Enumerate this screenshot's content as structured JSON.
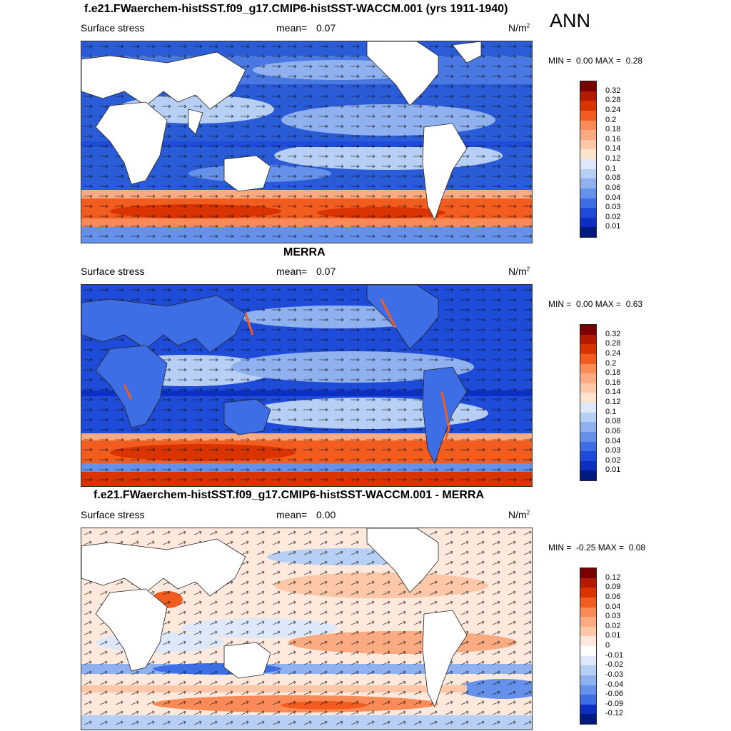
{
  "season": "ANN",
  "panels": [
    {
      "title": "f.e21.FWaerchem-histSST.f09_g17.CMIP6-histSST-WACCM.001 (yrs 1911-1940)",
      "variable": "Surface stress",
      "mean_label": "mean=",
      "mean": "0.07",
      "units": "N/m",
      "units_exp": "2",
      "min_label": "MIN =",
      "min": "0.00",
      "max_label": "MAX =",
      "max": "0.28",
      "levels": [
        "0.32",
        "0.28",
        "0.24",
        "0.2",
        "0.18",
        "0.16",
        "0.14",
        "0.12",
        "0.1",
        "0.08",
        "0.06",
        "0.04",
        "0.03",
        "0.02",
        "0.01"
      ],
      "colors": [
        "#7a0000",
        "#b31a00",
        "#d93300",
        "#f25c1f",
        "#fa8a57",
        "#fcaa82",
        "#fdc7a8",
        "#fee3cf",
        "#dde9fb",
        "#b7cff5",
        "#8fb1ef",
        "#6591ea",
        "#3d6ee6",
        "#1f4bd9",
        "#0a2fc2",
        "#001a80"
      ]
    },
    {
      "title": "MERRA",
      "variable": "Surface stress",
      "mean_label": "mean=",
      "mean": "0.07",
      "units": "N/m",
      "units_exp": "2",
      "min_label": "MIN =",
      "min": "0.00",
      "max_label": "MAX =",
      "max": "0.63",
      "levels": [
        "0.32",
        "0.28",
        "0.24",
        "0.2",
        "0.18",
        "0.16",
        "0.14",
        "0.12",
        "0.1",
        "0.08",
        "0.06",
        "0.04",
        "0.03",
        "0.02",
        "0.01"
      ],
      "colors": [
        "#7a0000",
        "#b31a00",
        "#d93300",
        "#f25c1f",
        "#fa8a57",
        "#fcaa82",
        "#fdc7a8",
        "#fee3cf",
        "#dde9fb",
        "#b7cff5",
        "#8fb1ef",
        "#6591ea",
        "#3d6ee6",
        "#1f4bd9",
        "#0a2fc2",
        "#001a80"
      ]
    },
    {
      "title": "f.e21.FWaerchem-histSST.f09_g17.CMIP6-histSST-WACCM.001 - MERRA",
      "variable": "Surface stress",
      "mean_label": "mean=",
      "mean": "0.00",
      "units": "N/m",
      "units_exp": "2",
      "min_label": "MIN =",
      "min": "-0.25",
      "max_label": "MAX =",
      "max": "0.08",
      "levels": [
        "0.12",
        "0.09",
        "0.06",
        "0.04",
        "0.03",
        "0.02",
        "0.01",
        "0",
        "-0.01",
        "-0.02",
        "-0.03",
        "-0.04",
        "-0.06",
        "-0.09",
        "-0.12"
      ],
      "colors": [
        "#7a0000",
        "#b31a00",
        "#d93300",
        "#f25c1f",
        "#fa8a57",
        "#fcaa82",
        "#fdc7a8",
        "#fee9dc",
        "#ffffff",
        "#dde9fb",
        "#b7cff5",
        "#8fb1ef",
        "#6591ea",
        "#3d6ee6",
        "#0a2fc2",
        "#001a80"
      ]
    }
  ]
}
